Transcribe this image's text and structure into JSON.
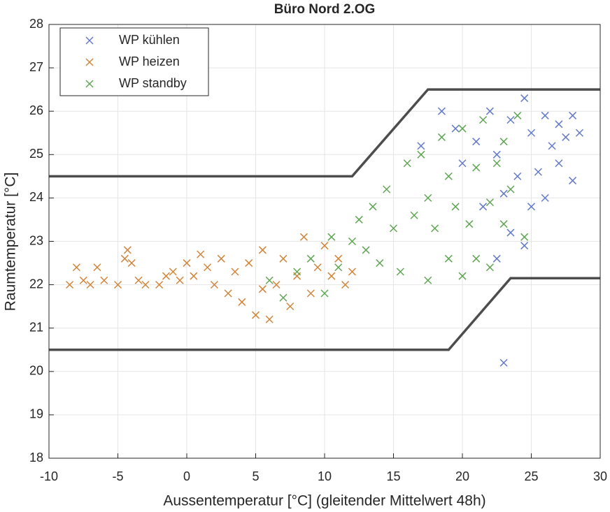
{
  "chart_data": {
    "type": "scatter",
    "title": "Büro Nord 2.OG",
    "x_label": "Aussentemperatur [°C] (gleitender Mittelwert 48h)",
    "y_label": "Raumtemperatur [°C]",
    "xlim": [
      -10,
      30
    ],
    "ylim": [
      18,
      28
    ],
    "xticks": [
      -10,
      -5,
      0,
      5,
      10,
      15,
      20,
      25,
      30
    ],
    "yticks": [
      18,
      19,
      20,
      21,
      22,
      23,
      24,
      25,
      26,
      27,
      28
    ],
    "grid": true,
    "legend": "upper-left",
    "series": [
      {
        "name": "WP kühlen",
        "color": "#6379c9",
        "x": [
          17,
          18.5,
          19.5,
          20,
          21,
          21.5,
          22,
          22.5,
          22.5,
          23,
          23,
          23.5,
          23.5,
          24,
          24.5,
          24.5,
          25,
          25,
          25.5,
          26,
          26,
          26.5,
          27,
          27,
          27.5,
          28,
          28,
          28.5
        ],
        "values": [
          25.2,
          26.0,
          25.6,
          24.8,
          25.3,
          23.8,
          26.0,
          22.6,
          25.0,
          24.1,
          20.2,
          25.8,
          23.2,
          24.5,
          26.3,
          22.9,
          25.5,
          23.8,
          24.6,
          25.9,
          24.0,
          25.2,
          25.7,
          24.8,
          25.4,
          25.9,
          24.4,
          25.5
        ]
      },
      {
        "name": "WP heizen",
        "color": "#d0853b",
        "x": [
          -8.5,
          -8,
          -7.5,
          -7,
          -6.5,
          -6,
          -5,
          -4.5,
          -4.3,
          -4,
          -3.5,
          -3,
          -2,
          -1.5,
          -1,
          -0.5,
          0,
          0.5,
          1,
          1.5,
          2,
          2.5,
          3,
          3.5,
          4,
          4.5,
          5,
          5.5,
          5.5,
          6,
          6.5,
          7,
          7.5,
          8,
          8.5,
          9,
          9.5,
          10,
          10.5,
          11,
          11.5,
          12
        ],
        "values": [
          22.0,
          22.4,
          22.1,
          22.0,
          22.4,
          22.1,
          22.0,
          22.6,
          22.8,
          22.5,
          22.1,
          22.0,
          22.0,
          22.2,
          22.3,
          22.1,
          22.5,
          22.2,
          22.7,
          22.4,
          22.0,
          22.6,
          21.8,
          22.3,
          21.6,
          22.5,
          21.3,
          22.8,
          21.9,
          21.2,
          22.0,
          22.6,
          21.5,
          22.2,
          23.1,
          21.8,
          22.4,
          22.9,
          22.2,
          22.6,
          22.0,
          22.3
        ]
      },
      {
        "name": "WP standby",
        "color": "#5fa553",
        "x": [
          6,
          7,
          8,
          9,
          10,
          10.5,
          11,
          12,
          12.5,
          13,
          13.5,
          14,
          14.5,
          15,
          15.5,
          16,
          16.5,
          17,
          17.5,
          17.5,
          18,
          18.5,
          19,
          19,
          19.5,
          20,
          20,
          20.5,
          21,
          21,
          21.5,
          22,
          22,
          22.5,
          23,
          23,
          23.5,
          24,
          24.5
        ],
        "values": [
          22.1,
          21.7,
          22.3,
          22.6,
          21.8,
          23.1,
          22.4,
          23.0,
          23.5,
          22.8,
          23.8,
          22.5,
          24.2,
          23.3,
          22.3,
          24.8,
          23.6,
          25.0,
          22.1,
          24.0,
          23.3,
          25.4,
          22.6,
          24.5,
          23.8,
          25.6,
          22.2,
          23.4,
          24.7,
          22.6,
          25.8,
          23.9,
          22.4,
          24.8,
          25.3,
          23.4,
          24.2,
          25.9,
          23.1
        ]
      }
    ],
    "bounds": [
      {
        "color": "#4d4d4d",
        "x": [
          -10,
          12,
          17.5,
          30
        ],
        "values": [
          24.5,
          24.5,
          26.5,
          26.5
        ]
      },
      {
        "color": "#4d4d4d",
        "x": [
          -10,
          19,
          23.5,
          30
        ],
        "values": [
          20.5,
          20.5,
          22.15,
          22.15
        ]
      }
    ]
  }
}
